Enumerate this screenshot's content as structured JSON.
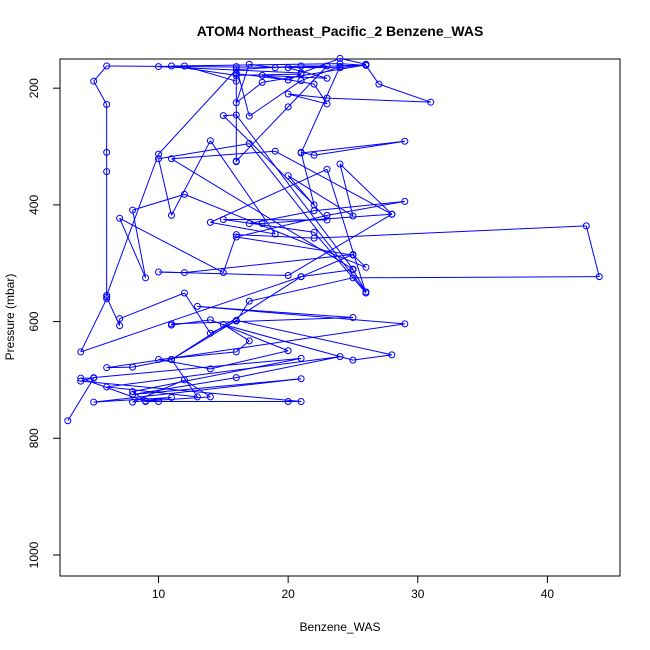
{
  "chart_data": {
    "type": "line",
    "title": "ATOM4 Northeast_Pacific_2 Benzene_WAS",
    "xlabel": "Benzene_WAS",
    "ylabel": "Pressure (mbar)",
    "xlim": [
      2.4,
      45.6
    ],
    "ylim": [
      1036,
      150
    ],
    "y_reversed": true,
    "x_ticks": [
      10,
      20,
      30,
      40
    ],
    "y_ticks": [
      200,
      400,
      600,
      800,
      1000
    ],
    "grid": false,
    "legend": "none",
    "series_color": "#0000ff",
    "marker": "open-circle",
    "series": [
      {
        "points": [
          [
            3,
            770
          ],
          [
            5,
            697
          ],
          [
            4,
            697
          ],
          [
            9,
            737
          ],
          [
            20,
            737
          ],
          [
            10,
            737
          ],
          [
            21,
            737
          ],
          [
            4,
            702
          ],
          [
            5,
            696
          ],
          [
            21,
            663
          ],
          [
            8,
            720
          ],
          [
            9,
            736
          ],
          [
            14,
            729
          ],
          [
            12,
            700
          ],
          [
            8,
            738
          ],
          [
            11,
            730
          ],
          [
            5,
            738
          ],
          [
            21,
            698
          ],
          [
            8,
            725
          ],
          [
            16,
            696
          ],
          [
            24,
            660
          ],
          [
            6,
            712
          ],
          [
            13,
            729
          ],
          [
            11,
            665
          ],
          [
            8,
            678
          ],
          [
            6,
            679
          ],
          [
            29,
            604
          ],
          [
            13,
            574
          ],
          [
            25,
            593
          ],
          [
            11,
            604
          ],
          [
            11,
            606
          ],
          [
            14,
            597
          ],
          [
            20,
            650
          ],
          [
            14,
            681
          ],
          [
            10,
            665
          ],
          [
            16,
            652
          ],
          [
            17,
            633
          ],
          [
            15,
            605
          ],
          [
            25,
            666
          ],
          [
            28,
            657
          ],
          [
            16,
            598
          ],
          [
            11,
            665
          ],
          [
            21,
            523
          ],
          [
            4,
            652
          ],
          [
            6,
            561
          ],
          [
            6,
            558
          ],
          [
            7,
            607
          ],
          [
            7,
            595
          ],
          [
            12,
            551
          ],
          [
            14,
            620
          ],
          [
            16,
            599
          ],
          [
            17,
            565
          ],
          [
            25,
            525
          ],
          [
            44,
            523
          ],
          [
            43,
            436
          ],
          [
            22,
            457
          ],
          [
            16,
            451
          ],
          [
            15,
            516
          ],
          [
            7,
            423
          ],
          [
            9,
            525
          ],
          [
            8,
            409
          ],
          [
            12,
            382
          ],
          [
            26,
            507
          ],
          [
            25,
            486
          ],
          [
            16,
            455
          ],
          [
            23,
            418
          ],
          [
            29,
            394
          ],
          [
            22,
            410
          ],
          [
            17,
            432
          ],
          [
            18,
            432
          ],
          [
            28,
            416
          ],
          [
            20,
            521
          ],
          [
            10,
            515
          ],
          [
            12,
            516
          ],
          [
            25,
            485
          ],
          [
            21,
            523
          ],
          [
            25,
            511
          ],
          [
            26,
            549
          ],
          [
            17,
            295
          ],
          [
            10,
            321
          ],
          [
            11,
            418
          ],
          [
            14,
            290
          ],
          [
            19,
            450
          ],
          [
            14,
            430
          ],
          [
            23,
            339
          ],
          [
            26,
            551
          ],
          [
            22,
            447
          ],
          [
            15,
            425
          ],
          [
            23,
            426
          ],
          [
            20,
            350
          ],
          [
            25,
            419
          ],
          [
            24,
            330
          ],
          [
            28,
            416
          ],
          [
            19,
            308
          ],
          [
            11,
            321
          ],
          [
            25,
            510
          ],
          [
            16,
            246
          ],
          [
            15,
            247
          ],
          [
            22,
            400
          ],
          [
            21,
            310
          ],
          [
            22,
            315
          ],
          [
            29,
            291
          ],
          [
            21,
            311
          ],
          [
            24,
            163
          ],
          [
            21,
            187
          ],
          [
            17,
            248
          ],
          [
            16,
            163
          ],
          [
            16,
            188
          ],
          [
            12,
            162
          ],
          [
            10,
            163
          ],
          [
            21,
            174
          ],
          [
            24,
            149
          ],
          [
            26,
            159
          ],
          [
            24,
            165
          ],
          [
            6,
            162
          ],
          [
            5,
            188
          ],
          [
            6,
            228
          ],
          [
            6,
            310
          ],
          [
            6,
            343
          ],
          [
            6,
            555
          ],
          [
            10,
            313
          ],
          [
            16,
            168
          ],
          [
            21,
            162
          ],
          [
            23,
            162
          ],
          [
            20,
            232
          ],
          [
            16,
            325
          ],
          [
            16,
            326
          ],
          [
            16,
            175
          ],
          [
            20,
            186
          ],
          [
            21,
            176
          ],
          [
            16,
            178
          ],
          [
            11,
            162
          ],
          [
            24,
            158
          ],
          [
            26,
            161
          ],
          [
            27,
            193
          ],
          [
            31,
            224
          ],
          [
            23,
            217
          ],
          [
            20,
            210
          ],
          [
            23,
            227
          ],
          [
            22,
            193
          ],
          [
            18,
            178
          ],
          [
            23,
            183
          ],
          [
            20,
            165
          ],
          [
            26,
            160
          ],
          [
            18,
            190
          ],
          [
            16,
            225
          ],
          [
            17,
            159
          ],
          [
            19,
            165
          ]
        ]
      }
    ]
  }
}
